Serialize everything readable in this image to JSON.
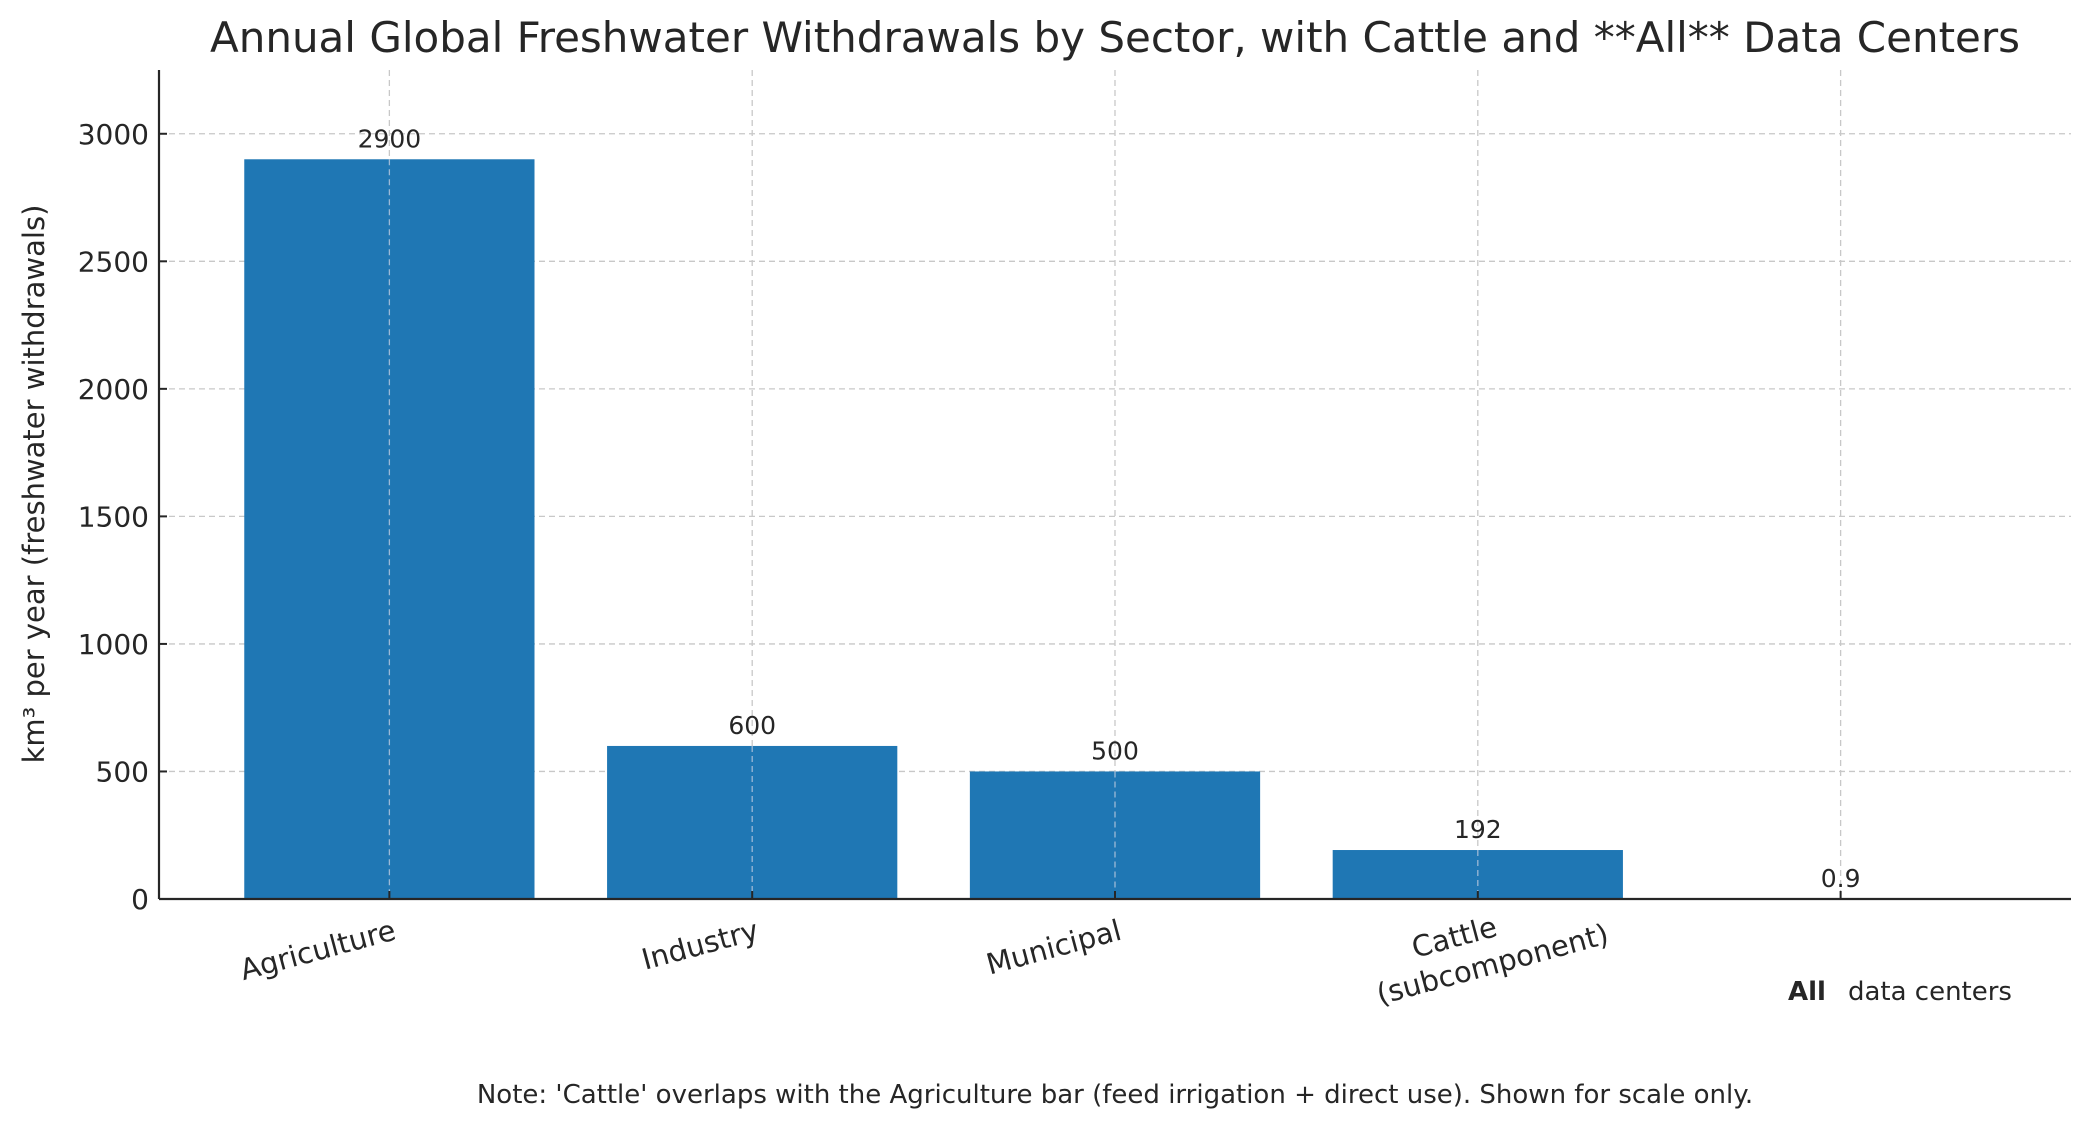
{
  "chart_data": {
    "type": "bar",
    "title": "Annual Global Freshwater Withdrawals by Sector, with Cattle and **All** Data Centers",
    "xlabel": "",
    "ylabel": "km³ per year (freshwater withdrawals)",
    "categories": [
      "Agriculture",
      "Industry",
      "Municipal",
      "Cattle\n(subcomponent)",
      ""
    ],
    "values": [
      2900,
      600,
      500,
      192,
      0.9
    ],
    "value_labels": [
      "2900",
      "600",
      "500",
      "192",
      "0.9"
    ],
    "ylim": [
      0,
      3250
    ],
    "yticks": [
      0,
      500,
      1000,
      1500,
      2000,
      2500,
      3000
    ],
    "grid": true,
    "bar_color": "#1f77b4",
    "annotation": {
      "bold": "All",
      "rest": "data centers"
    },
    "note": "Note: 'Cattle' overlaps with the Agriculture bar (feed irrigation + direct use). Shown for scale only."
  }
}
